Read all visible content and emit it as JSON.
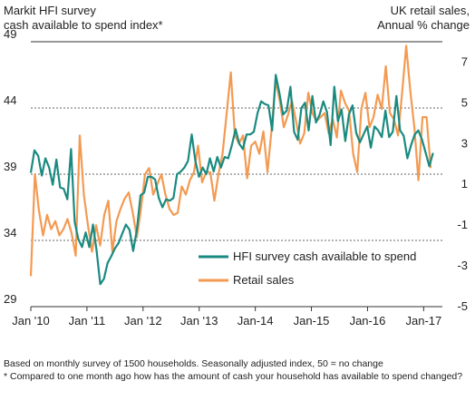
{
  "chart_data": {
    "type": "line",
    "left_axis_title_line1": "Markit HFI survey",
    "left_axis_title_line2": "cash available to spend index*",
    "right_axis_title_line1": "UK retail sales,",
    "right_axis_title_line2": "Annual % change",
    "left_axis": {
      "range": [
        29,
        49
      ],
      "ticks": [
        "29",
        "34",
        "39",
        "44",
        "49"
      ]
    },
    "right_axis": {
      "range": [
        -5,
        8
      ],
      "ticks": [
        "-5",
        "-3",
        "-1",
        "1",
        "3",
        "5",
        "7"
      ]
    },
    "x_ticks": [
      "Jan '10",
      "Jan '11",
      "Jan '12",
      "Jan '13",
      "Jan-14",
      "Jan-15",
      "Jan-16",
      "Jan-17"
    ],
    "x_range": [
      0,
      88
    ],
    "grid": "horizontal dashed at left-axis ticks 34, 39, 44",
    "legend_position": "lower-right",
    "series": [
      {
        "name": "HFI survey cash available to spend",
        "axis": "left",
        "color": "#1a8a80",
        "values": [
          39.1,
          40.8,
          40.4,
          38.9,
          40.2,
          39.5,
          38.2,
          40.1,
          38.0,
          37.9,
          37.1,
          40.9,
          35.4,
          34.1,
          33.5,
          34.6,
          33.5,
          35.2,
          33.2,
          30.7,
          31.1,
          32.3,
          32.8,
          33.4,
          33.8,
          34.5,
          35.2,
          34.8,
          33.2,
          34.8,
          37.4,
          37.6,
          38.8,
          38.8,
          38.6,
          37.2,
          36.5,
          37.1,
          37.0,
          37.2,
          39.0,
          39.2,
          39.5,
          40.0,
          42.0,
          40.0,
          38.8,
          39.5,
          39.0,
          40.2,
          39.2,
          40.3,
          39.5,
          40.3,
          40.2,
          41.2,
          42.4,
          41.3,
          40.9,
          42.0,
          42.0,
          42.2,
          43.6,
          44.5,
          44.3,
          44.2,
          42.3,
          46.5,
          45.1,
          43.5,
          43.8,
          45.6,
          42.2,
          41.6,
          44.0,
          44.4,
          42.3,
          44.9,
          42.9,
          43.5,
          44.5,
          43.7,
          41.2,
          45.6,
          43.0,
          43.9,
          41.5,
          43.5,
          44.2,
          42.1,
          41.4,
          42.0,
          42.6,
          41.0,
          42.6,
          42.3,
          41.8,
          43.8,
          41.8,
          42.2,
          44.9,
          42.3,
          41.9,
          40.2,
          41.2,
          42.0,
          42.3,
          41.6,
          40.6,
          39.6,
          40.6
        ]
      },
      {
        "name": "Retail sales",
        "axis": "right",
        "color": "#f39a52",
        "values": [
          -3.5,
          1.5,
          -0.3,
          -1.5,
          -0.5,
          -1.2,
          -0.8,
          -1.5,
          -1.2,
          -0.7,
          -1.4,
          -2.5,
          3.4,
          0.5,
          -1.0,
          -2.3,
          -1.0,
          -2.0,
          -0.5,
          0.2,
          -2.3,
          -0.8,
          -0.2,
          0.3,
          0.6,
          -0.4,
          -1.6,
          -0.2,
          1.5,
          1.8,
          0.5,
          1.0,
          1.5,
          0.5,
          -0.2,
          -0.5,
          -0.4,
          0.9,
          0.5,
          1.2,
          1.6,
          2.9,
          1.1,
          1.6,
          1.6,
          0.2,
          1.5,
          2.5,
          4.5,
          6.5,
          3.4,
          3.0,
          3.4,
          1.3,
          2.9,
          3.1,
          2.5,
          3.6,
          1.6,
          3.7,
          6.1,
          5.1,
          3.8,
          4.4,
          5.1,
          4.1,
          3.0,
          3.5,
          5.5,
          4.5,
          4.1,
          4.3,
          4.5,
          3.5,
          4.2,
          3.3,
          5.6,
          5.0,
          4.6,
          2.5,
          1.6,
          4.7,
          5.5,
          3.8,
          4.3,
          5.4,
          4.7,
          6.8,
          4.5,
          4.2,
          3.4,
          5.5,
          7.8,
          5.6,
          3.8,
          1.2,
          4.3,
          4.3,
          1.8
        ]
      }
    ]
  }
}
